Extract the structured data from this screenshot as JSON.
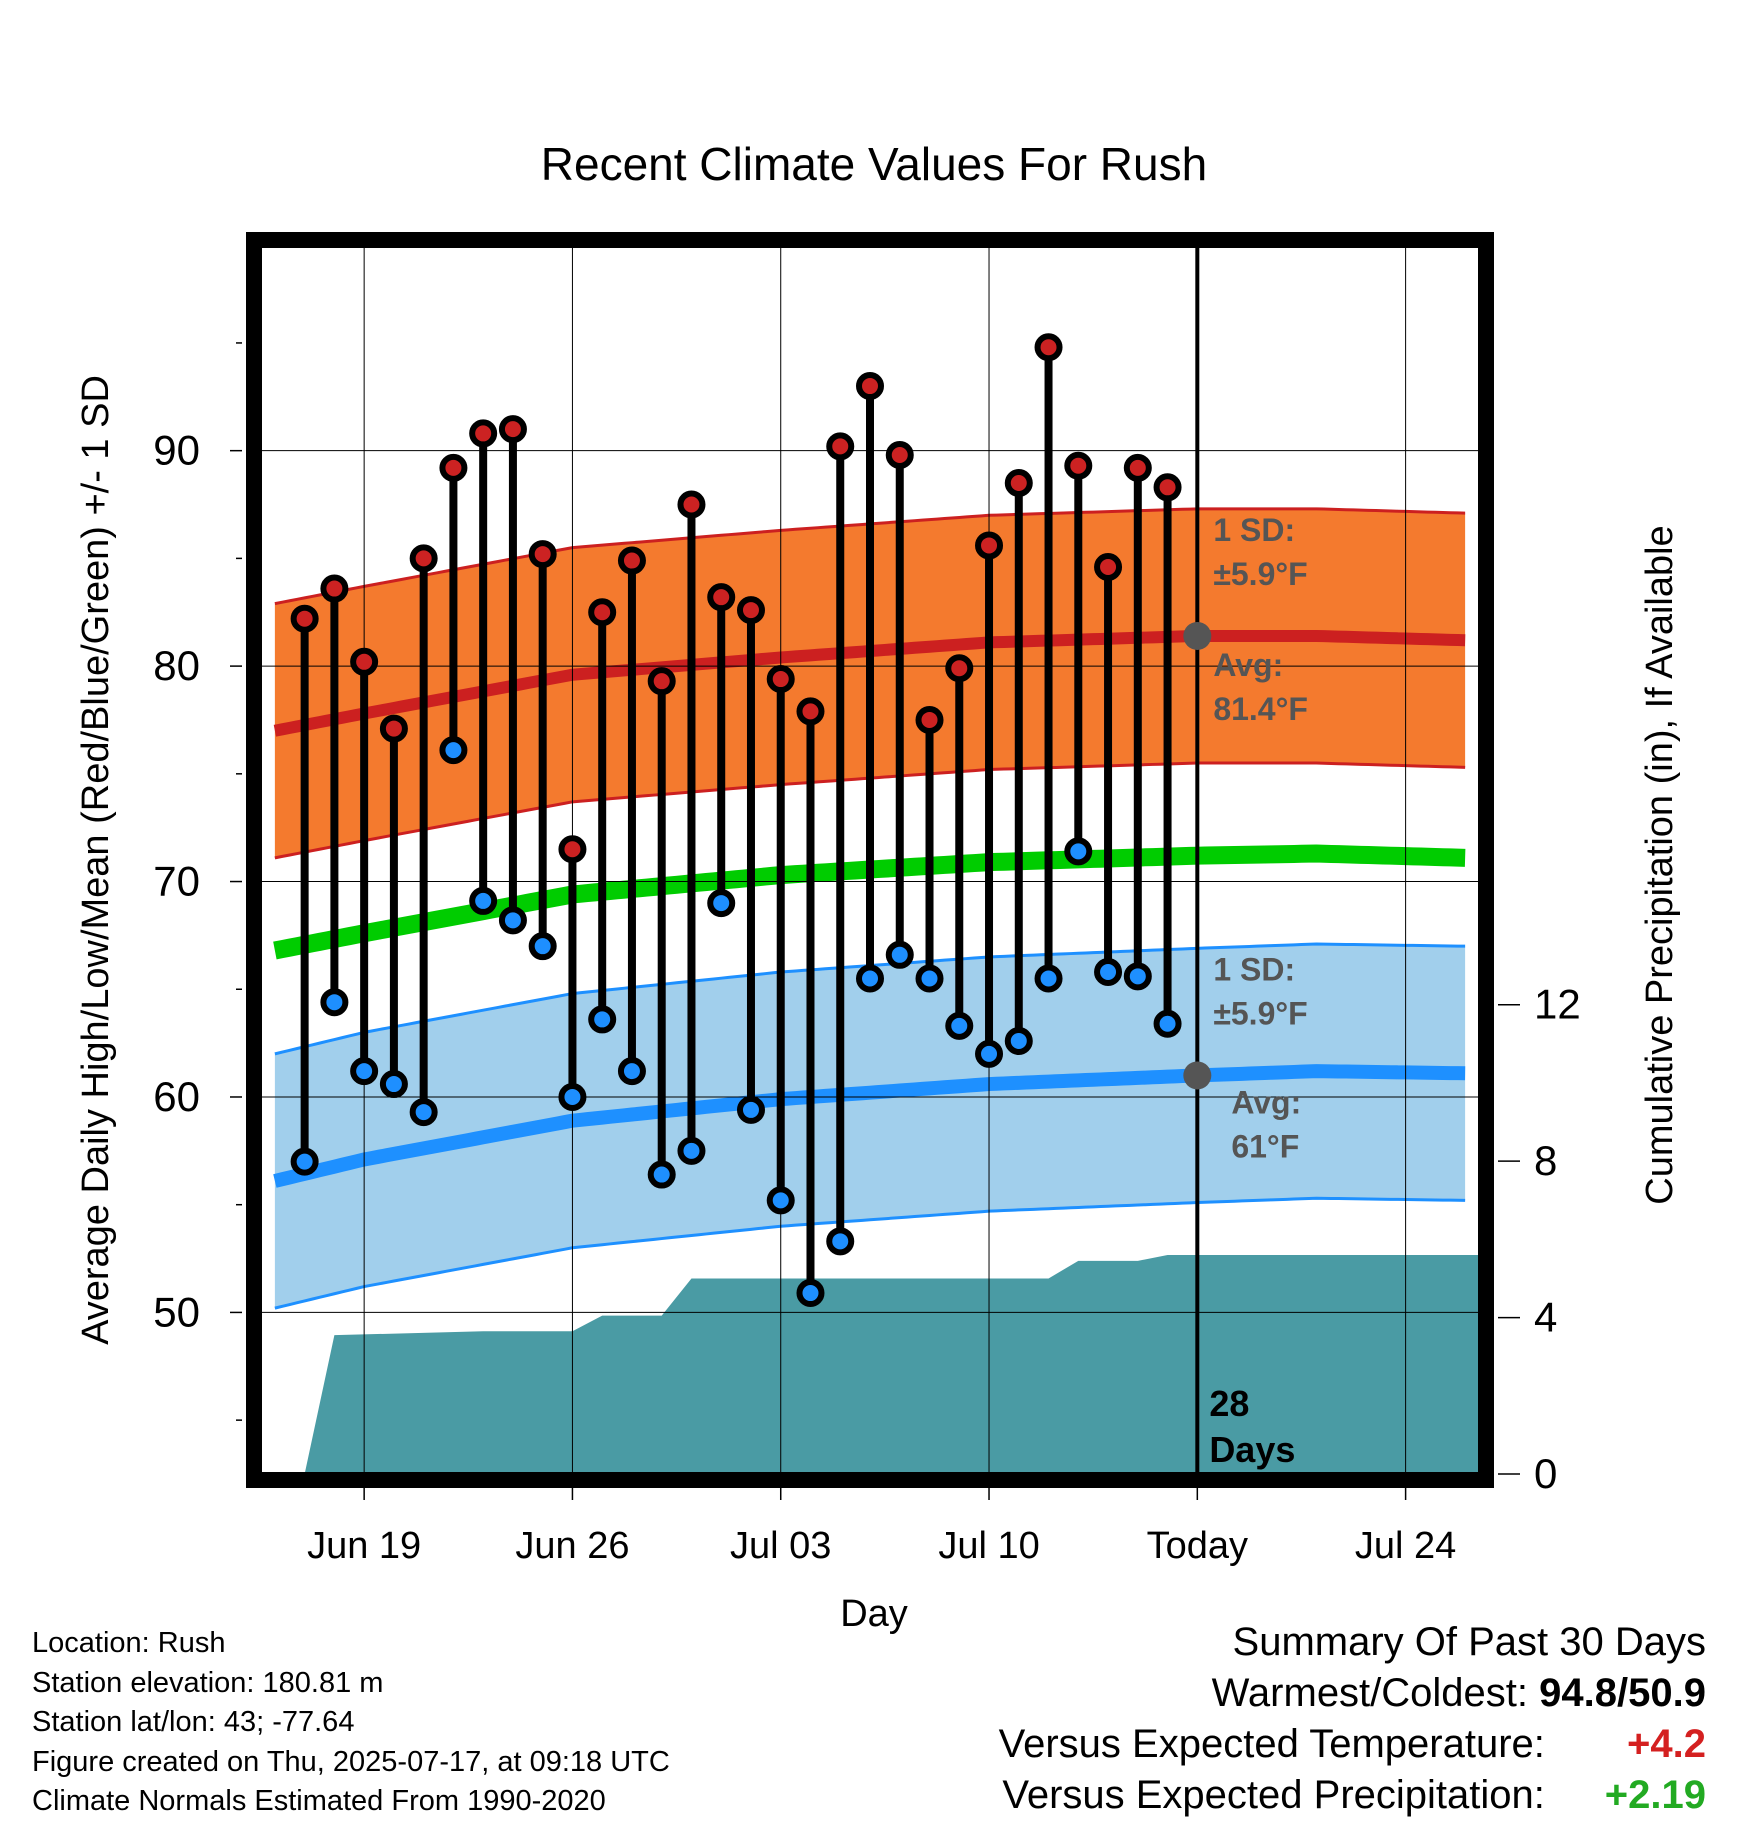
{
  "chart_data": {
    "type": "line",
    "title": "Recent Climate Values For Rush",
    "xlabel": "Day",
    "ylabel": "Average Daily High/Low/Mean (Red/Blue/Green) +/- 1 SD",
    "y2label": "Cumulative Precipitation (in), If Available",
    "x_range_days": [
      -31.5,
      9.5
    ],
    "ylim": [
      42.5,
      99.5
    ],
    "y2lim": [
      0,
      31.4
    ],
    "grid": true,
    "x_tick_positions": [
      -28,
      -21,
      -14,
      -7,
      0,
      7
    ],
    "x_tick_labels": [
      "Jun 19",
      "Jun 26",
      "Jul 03",
      "Jul 10",
      "Today",
      "Jul 24"
    ],
    "y_ticks": [
      50,
      60,
      70,
      80,
      90
    ],
    "y2_ticks": [
      0,
      4,
      8,
      12
    ],
    "normals": {
      "x": [
        -31,
        -28,
        -21,
        -14,
        -7,
        0,
        4,
        9
      ],
      "avg_high": [
        77.0,
        77.8,
        79.6,
        80.4,
        81.1,
        81.4,
        81.4,
        81.2
      ],
      "avg_low": [
        56.1,
        57.1,
        58.9,
        59.9,
        60.6,
        61.0,
        61.2,
        61.1
      ],
      "avg_mean": [
        66.8,
        67.6,
        69.4,
        70.3,
        70.9,
        71.2,
        71.3,
        71.1
      ],
      "sd": 5.9
    },
    "daily": {
      "x": [
        -30,
        -29,
        -28,
        -27,
        -26,
        -25,
        -24,
        -23,
        -22,
        -21,
        -20,
        -19,
        -18,
        -17,
        -16,
        -15,
        -14,
        -13,
        -12,
        -11,
        -10,
        -9,
        -8,
        -7,
        -6,
        -5,
        -4,
        -3,
        -2,
        -1
      ],
      "high": [
        82.2,
        83.6,
        80.2,
        77.1,
        85.0,
        89.2,
        90.8,
        91.0,
        85.2,
        71.5,
        82.5,
        84.9,
        79.3,
        87.5,
        83.2,
        82.6,
        79.4,
        77.9,
        90.2,
        93.0,
        89.8,
        77.5,
        79.9,
        85.6,
        88.5,
        94.8,
        89.3,
        84.6,
        89.2,
        88.3
      ],
      "low": [
        57.0,
        64.4,
        61.2,
        60.6,
        59.3,
        76.1,
        69.1,
        68.2,
        67.0,
        60.0,
        63.6,
        61.2,
        56.4,
        57.5,
        69.0,
        59.4,
        55.2,
        50.9,
        53.3,
        65.5,
        66.6,
        65.5,
        63.3,
        62.0,
        62.6,
        65.5,
        71.4,
        65.8,
        65.6,
        63.4
      ]
    },
    "precip_cumulative": {
      "x": [
        -30,
        -29,
        -24,
        -21,
        -20,
        -19,
        -18,
        -17,
        -10,
        -9,
        -8,
        -7,
        -6,
        -5,
        -4,
        -3,
        -2,
        -1,
        0,
        9.5
      ],
      "values": [
        0,
        3.55,
        3.65,
        3.65,
        4.05,
        4.05,
        4.05,
        5.0,
        5.0,
        5.0,
        5.0,
        5.0,
        5.0,
        5.0,
        5.45,
        5.45,
        5.45,
        5.6,
        5.6,
        5.6
      ]
    },
    "annotations": {
      "high_sd": "1 SD:",
      "high_sd_val": "±5.9°F",
      "high_avg": "Avg:",
      "high_avg_val": "81.4°F",
      "low_sd": "1 SD:",
      "low_sd_val": "±5.9°F",
      "low_avg": "Avg:",
      "low_avg_val": "61°F",
      "days_line1": "28",
      "days_line2": "Days"
    }
  },
  "colors": {
    "high_band": "#f47a2e",
    "high_line": "#cc2020",
    "low_band": "#87c1e7",
    "low_line": "#1e90ff",
    "mean_line": "#00cc00",
    "precip": "#4a9ba4",
    "marker_high": "#cc2222",
    "marker_low": "#1e8fff",
    "annot": "#555555",
    "pos_temp": "#d42020",
    "pos_precip": "#22aa22"
  },
  "footer": {
    "location": "Location: Rush",
    "elevation": "Station elevation: 180.81 m",
    "latlon": "Station lat/lon: 43; -77.64",
    "created": "Figure created on Thu, 2025-07-17, at 09:18 UTC",
    "normals": "Climate Normals Estimated From 1990-2020"
  },
  "summary": {
    "title": "Summary Of Past 30 Days",
    "warm_cold_label": "Warmest/Coldest:",
    "warmest": "94.8",
    "sep": "/",
    "coldest": "50.9",
    "temp_label": "Versus Expected Temperature:",
    "temp_value": "+4.2",
    "precip_label": "Versus Expected Precipitation:",
    "precip_value": "+2.19"
  }
}
